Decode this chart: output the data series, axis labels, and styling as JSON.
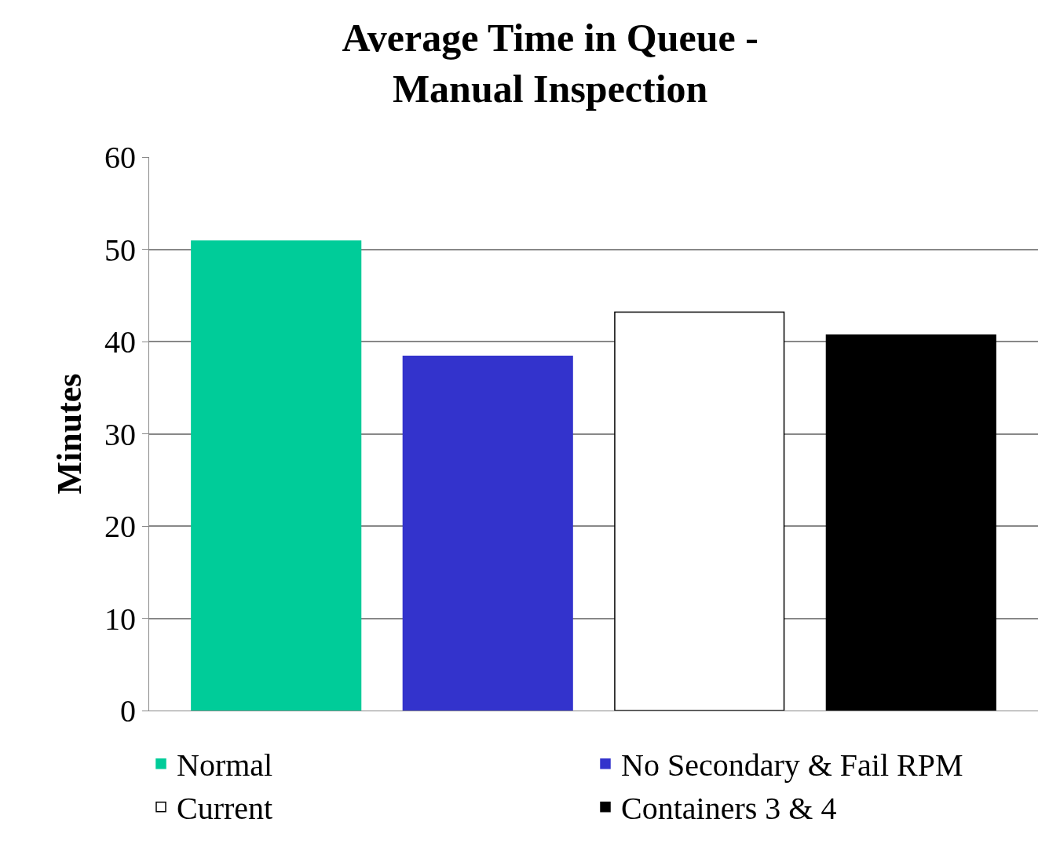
{
  "chart_data": {
    "type": "bar",
    "title": "Average Time in Queue -\nManual Inspection",
    "ylabel": "Minutes",
    "categories": [
      null,
      null,
      null,
      null
    ],
    "series": [
      {
        "name": "Normal",
        "color": "#00cc99",
        "values": [
          50.9,
          null,
          null,
          null
        ]
      },
      {
        "name": "No Secondary & Fail RPM",
        "color": "#3333cc",
        "values": [
          null,
          38.4,
          null,
          null
        ]
      },
      {
        "name": "Current",
        "color": "#ffffff",
        "values": [
          null,
          null,
          43.2,
          null
        ]
      },
      {
        "name": "Containers 3 & 4",
        "color": "#000000",
        "values": [
          null,
          null,
          null,
          40.7
        ]
      }
    ],
    "ylim": [
      0,
      60
    ],
    "yticks": [
      0,
      10,
      20,
      30,
      40,
      50,
      60
    ],
    "grid": "y",
    "legend": "bottom"
  }
}
